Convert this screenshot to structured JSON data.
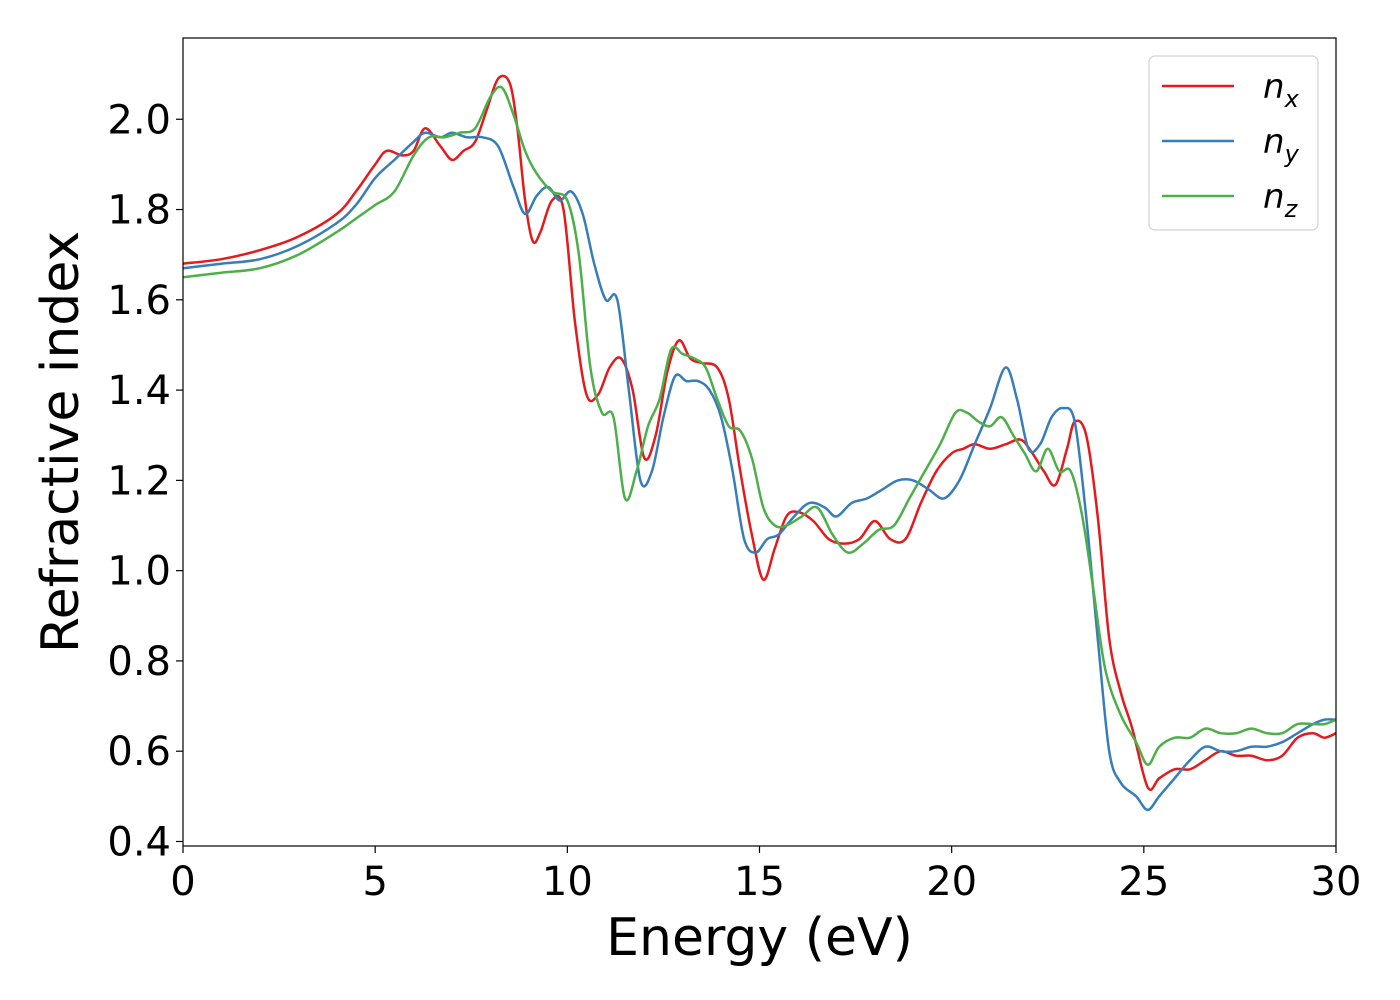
{
  "chart_data": {
    "type": "line",
    "title": "",
    "xlabel": "Energy (eV)",
    "ylabel": "Refractive index",
    "xlim": [
      0,
      30
    ],
    "ylim": [
      0.39,
      2.18
    ],
    "xticks": [
      0,
      5,
      10,
      15,
      20,
      25,
      30
    ],
    "yticks": [
      0.4,
      0.6,
      0.8,
      1.0,
      1.2,
      1.4,
      1.6,
      1.8,
      2.0
    ],
    "grid": false,
    "legend_position": "top-right",
    "series": [
      {
        "name": "n",
        "subscript": "x",
        "color": "#e41a1c",
        "x": [
          0,
          1,
          2,
          3,
          4,
          4.5,
          5,
          5.3,
          5.7,
          6,
          6.3,
          6.7,
          7,
          7.3,
          7.6,
          7.9,
          8.2,
          8.5,
          8.7,
          8.9,
          9.1,
          9.3,
          9.6,
          9.9,
          10.2,
          10.5,
          10.8,
          11.1,
          11.4,
          11.7,
          12,
          12.3,
          12.6,
          12.9,
          13.2,
          13.5,
          13.9,
          14.2,
          14.5,
          14.8,
          15.1,
          15.4,
          15.7,
          16,
          16.4,
          16.8,
          17.2,
          17.6,
          18,
          18.4,
          18.8,
          19.2,
          19.6,
          20,
          20.3,
          20.6,
          21,
          21.4,
          21.8,
          22.1,
          22.4,
          22.7,
          23,
          23.2,
          23.5,
          23.8,
          24.1,
          24.4,
          24.7,
          25.1,
          25.4,
          25.8,
          26.2,
          26.6,
          27,
          27.4,
          27.8,
          28.2,
          28.6,
          29,
          29.4,
          29.7,
          30
        ],
        "values": [
          1.68,
          1.69,
          1.71,
          1.74,
          1.79,
          1.84,
          1.9,
          1.93,
          1.92,
          1.93,
          1.98,
          1.94,
          1.91,
          1.93,
          1.95,
          2.02,
          2.09,
          2.08,
          1.98,
          1.82,
          1.73,
          1.75,
          1.82,
          1.8,
          1.55,
          1.39,
          1.39,
          1.45,
          1.47,
          1.4,
          1.25,
          1.3,
          1.44,
          1.51,
          1.47,
          1.46,
          1.45,
          1.38,
          1.22,
          1.08,
          0.98,
          1.05,
          1.12,
          1.13,
          1.11,
          1.07,
          1.06,
          1.07,
          1.11,
          1.07,
          1.07,
          1.15,
          1.22,
          1.26,
          1.27,
          1.28,
          1.27,
          1.28,
          1.29,
          1.26,
          1.22,
          1.19,
          1.27,
          1.33,
          1.3,
          1.12,
          0.85,
          0.73,
          0.65,
          0.52,
          0.54,
          0.56,
          0.56,
          0.58,
          0.6,
          0.59,
          0.59,
          0.58,
          0.59,
          0.63,
          0.64,
          0.63,
          0.64
        ]
      },
      {
        "name": "n",
        "subscript": "y",
        "color": "#377eb8",
        "x": [
          0,
          1,
          2,
          3,
          4,
          4.5,
          5,
          5.5,
          6,
          6.3,
          6.7,
          7,
          7.4,
          7.8,
          8.2,
          8.6,
          8.9,
          9.2,
          9.5,
          9.8,
          10.1,
          10.4,
          10.7,
          11,
          11.3,
          11.6,
          11.9,
          12.2,
          12.5,
          12.8,
          13.1,
          13.4,
          13.7,
          14,
          14.3,
          14.6,
          14.9,
          15.2,
          15.5,
          15.9,
          16.3,
          16.7,
          17,
          17.4,
          17.8,
          18.2,
          18.6,
          19,
          19.4,
          19.8,
          20.2,
          20.6,
          21,
          21.4,
          21.7,
          22,
          22.3,
          22.6,
          22.9,
          23.2,
          23.5,
          23.8,
          24.1,
          24.4,
          24.8,
          25.1,
          25.4,
          25.8,
          26.2,
          26.6,
          27,
          27.4,
          27.8,
          28.2,
          28.6,
          29,
          29.4,
          29.7,
          30
        ],
        "values": [
          1.67,
          1.68,
          1.69,
          1.72,
          1.77,
          1.81,
          1.87,
          1.91,
          1.95,
          1.97,
          1.96,
          1.97,
          1.96,
          1.96,
          1.94,
          1.85,
          1.79,
          1.83,
          1.85,
          1.82,
          1.84,
          1.79,
          1.68,
          1.6,
          1.6,
          1.4,
          1.2,
          1.22,
          1.34,
          1.43,
          1.42,
          1.42,
          1.4,
          1.34,
          1.22,
          1.07,
          1.04,
          1.07,
          1.08,
          1.12,
          1.15,
          1.14,
          1.12,
          1.15,
          1.16,
          1.18,
          1.2,
          1.2,
          1.18,
          1.16,
          1.2,
          1.28,
          1.36,
          1.45,
          1.38,
          1.27,
          1.28,
          1.34,
          1.36,
          1.33,
          1.12,
          0.85,
          0.6,
          0.53,
          0.5,
          0.47,
          0.5,
          0.54,
          0.58,
          0.61,
          0.6,
          0.6,
          0.61,
          0.61,
          0.62,
          0.64,
          0.66,
          0.67,
          0.67
        ]
      },
      {
        "name": "n",
        "subscript": "z",
        "color": "#4daf4a",
        "x": [
          0,
          1,
          2,
          3,
          4,
          4.5,
          5,
          5.5,
          6,
          6.4,
          6.8,
          7.2,
          7.6,
          8,
          8.3,
          8.6,
          8.9,
          9.2,
          9.6,
          10,
          10.3,
          10.6,
          10.9,
          11.2,
          11.5,
          11.8,
          12.1,
          12.4,
          12.7,
          13,
          13.3,
          13.6,
          13.9,
          14.2,
          14.5,
          14.8,
          15.1,
          15.4,
          15.7,
          16.1,
          16.5,
          16.9,
          17.3,
          17.7,
          18.1,
          18.5,
          18.9,
          19.3,
          19.7,
          20.1,
          20.4,
          20.7,
          21,
          21.3,
          21.6,
          21.9,
          22.2,
          22.5,
          22.8,
          23.1,
          23.4,
          23.7,
          24,
          24.4,
          24.8,
          25.1,
          25.4,
          25.8,
          26.2,
          26.6,
          27,
          27.4,
          27.8,
          28.2,
          28.6,
          29,
          29.4,
          29.7,
          30
        ],
        "values": [
          1.65,
          1.66,
          1.67,
          1.7,
          1.75,
          1.78,
          1.81,
          1.84,
          1.92,
          1.96,
          1.96,
          1.97,
          1.98,
          2.05,
          2.07,
          2.01,
          1.93,
          1.88,
          1.84,
          1.82,
          1.7,
          1.45,
          1.35,
          1.34,
          1.16,
          1.22,
          1.32,
          1.38,
          1.49,
          1.48,
          1.47,
          1.45,
          1.38,
          1.32,
          1.31,
          1.25,
          1.14,
          1.1,
          1.1,
          1.12,
          1.14,
          1.08,
          1.04,
          1.06,
          1.09,
          1.1,
          1.16,
          1.22,
          1.28,
          1.35,
          1.35,
          1.33,
          1.32,
          1.34,
          1.3,
          1.26,
          1.22,
          1.27,
          1.22,
          1.22,
          1.12,
          0.95,
          0.78,
          0.68,
          0.62,
          0.57,
          0.61,
          0.63,
          0.63,
          0.65,
          0.64,
          0.64,
          0.65,
          0.64,
          0.64,
          0.66,
          0.66,
          0.66,
          0.67
        ]
      }
    ]
  }
}
